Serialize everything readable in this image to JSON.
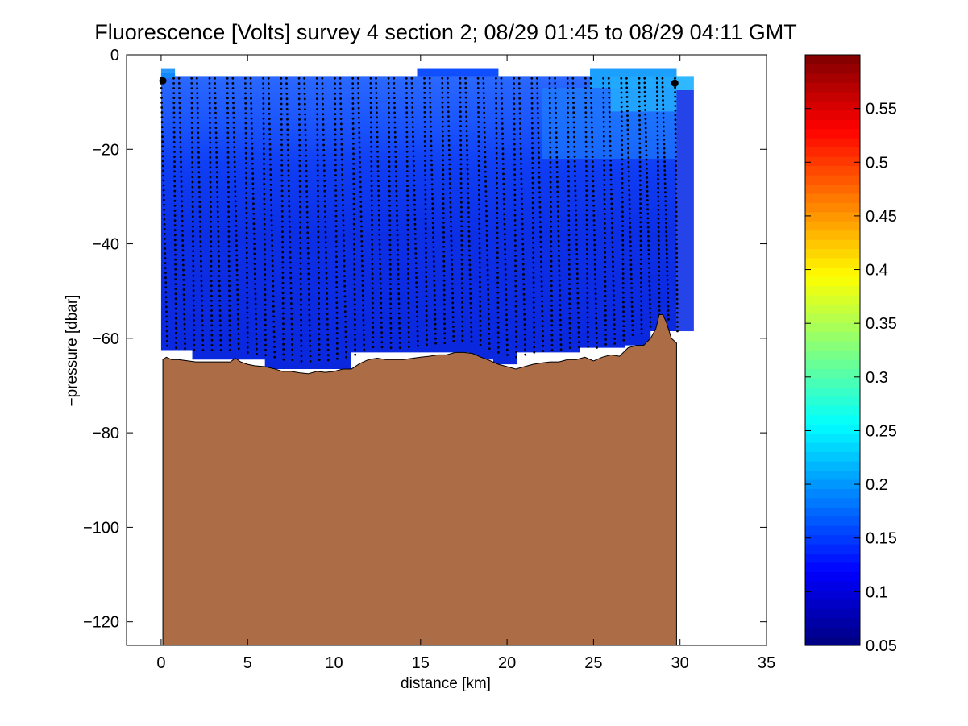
{
  "chart_data": {
    "type": "heatmap",
    "title": "Fluorescence [Volts] survey 4 section 2; 08/29 01:45 to 08/29 04:11 GMT",
    "xlabel": "distance [km]",
    "ylabel": "−pressure [dbar]",
    "xlim": [
      -2,
      35
    ],
    "ylim": [
      -125,
      0
    ],
    "x_ticks": [
      0,
      5,
      10,
      15,
      20,
      25,
      30,
      35
    ],
    "x_tick_labels": [
      "0",
      "5",
      "10",
      "15",
      "20",
      "25",
      "30",
      "35"
    ],
    "y_ticks": [
      0,
      -20,
      -40,
      -60,
      -80,
      -100,
      -120
    ],
    "y_tick_labels": [
      "0",
      "−20",
      "−40",
      "−60",
      "−80",
      "−100",
      "−120"
    ],
    "grid": false,
    "colorbar": {
      "colormap": "jet",
      "range": [
        0.05,
        0.6
      ],
      "ticks": [
        0.05,
        0.1,
        0.15,
        0.2,
        0.25,
        0.3,
        0.35,
        0.4,
        0.45,
        0.5,
        0.55
      ],
      "tick_labels": [
        "0.05",
        "0.1",
        "0.15",
        "0.2",
        "0.25",
        "0.3",
        "0.35",
        "0.4",
        "0.45",
        "0.5",
        "0.55"
      ]
    },
    "fluorescence_section": {
      "x_range": [
        0,
        30.8
      ],
      "surface_value_range": [
        0.15,
        0.25
      ],
      "deep_value": 0.1,
      "bottom_of_data": [
        [
          0,
          -62.5
        ],
        [
          1.8,
          -62.5
        ],
        [
          1.8,
          -64.5
        ],
        [
          6,
          -64.5
        ],
        [
          6,
          -66.5
        ],
        [
          11,
          -66.5
        ],
        [
          11,
          -63
        ],
        [
          17.8,
          -63
        ],
        [
          17.8,
          -64.5
        ],
        [
          19.2,
          -64.5
        ],
        [
          19.2,
          -65.5
        ],
        [
          20.6,
          -65.5
        ],
        [
          20.6,
          -63
        ],
        [
          24.2,
          -63
        ],
        [
          24.2,
          -62
        ],
        [
          26.8,
          -62
        ],
        [
          26.8,
          -61.5
        ],
        [
          28.3,
          -61.5
        ],
        [
          28.3,
          -58.5
        ],
        [
          29.8,
          -58.5
        ]
      ]
    },
    "bathymetry": {
      "fill_color": "#ab6c46",
      "x": [
        0.1,
        0.3,
        0.6,
        1,
        2,
        3,
        4,
        4.3,
        4.6,
        5,
        5.4,
        6,
        6.6,
        7,
        7.5,
        8,
        8.5,
        9,
        9.5,
        10,
        10.5,
        11,
        11.5,
        12,
        12.5,
        13,
        13.5,
        14,
        15,
        15.5,
        16,
        16.5,
        17,
        17.5,
        18,
        18.5,
        19,
        19.5,
        20,
        20.5,
        21,
        21.5,
        22,
        22.5,
        23,
        23.5,
        24,
        24.5,
        25,
        25.5,
        26,
        26.5,
        27,
        27.5,
        27.9,
        28.3,
        28.6,
        28.8,
        29,
        29.2,
        29.5,
        29.8
      ],
      "y": [
        -64.5,
        -64,
        -64.5,
        -64.5,
        -65,
        -65,
        -65,
        -64.2,
        -65,
        -65.5,
        -65.8,
        -66,
        -66.5,
        -67,
        -67,
        -67.3,
        -67.5,
        -67,
        -67.2,
        -67,
        -66.5,
        -66.5,
        -65.3,
        -64.5,
        -64.2,
        -64.5,
        -64.5,
        -64.5,
        -64,
        -63.8,
        -63.5,
        -63.5,
        -63,
        -63,
        -63.2,
        -64,
        -64.7,
        -65.5,
        -66,
        -66.5,
        -66,
        -65.5,
        -65.2,
        -65,
        -65,
        -64.5,
        -64.5,
        -64,
        -64.8,
        -64,
        -63.5,
        -63.8,
        -62,
        -61.5,
        -61.5,
        -60,
        -58,
        -55,
        -55,
        -56.5,
        -60,
        -61
      ]
    },
    "profiles": {
      "marker": "black dots",
      "count": 58,
      "x_start": 0,
      "x_end": 29.5,
      "top_pressure": -5,
      "bottom_pressure_range": [
        -56,
        -65
      ]
    }
  }
}
